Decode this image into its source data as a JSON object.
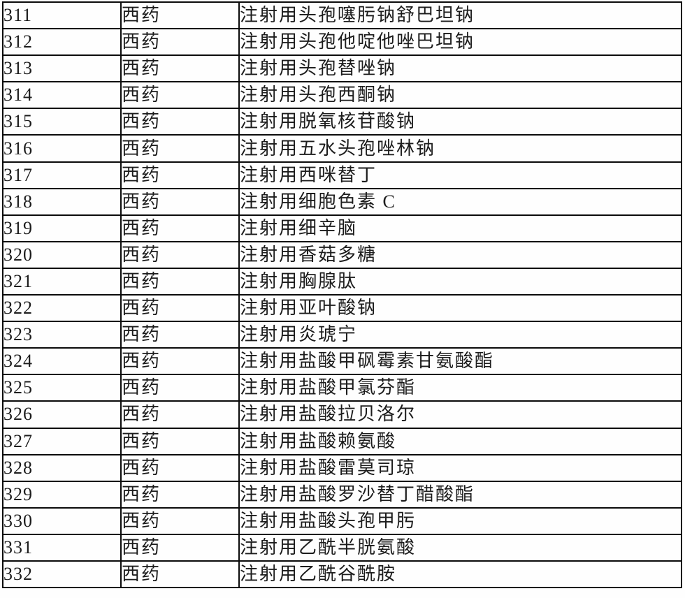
{
  "document": {
    "type": "drug-list-table",
    "category_label": "西药",
    "colors": {
      "border": "#0b0b0b",
      "text": "#1c1c1c",
      "background": "#fefefe"
    }
  },
  "table": {
    "rows": [
      {
        "no": "311",
        "category": "西药",
        "name": "注射用头孢噻肟钠舒巴坦钠"
      },
      {
        "no": "312",
        "category": "西药",
        "name": "注射用头孢他啶他唑巴坦钠"
      },
      {
        "no": "313",
        "category": "西药",
        "name": "注射用头孢替唑钠"
      },
      {
        "no": "314",
        "category": "西药",
        "name": "注射用头孢西酮钠"
      },
      {
        "no": "315",
        "category": "西药",
        "name": "注射用脱氧核苷酸钠"
      },
      {
        "no": "316",
        "category": "西药",
        "name": "注射用五水头孢唑林钠"
      },
      {
        "no": "317",
        "category": "西药",
        "name": "注射用西咪替丁"
      },
      {
        "no": "318",
        "category": "西药",
        "name": "注射用细胞色素 C"
      },
      {
        "no": "319",
        "category": "西药",
        "name": "注射用细辛脑"
      },
      {
        "no": "320",
        "category": "西药",
        "name": "注射用香菇多糖"
      },
      {
        "no": "321",
        "category": "西药",
        "name": "注射用胸腺肽"
      },
      {
        "no": "322",
        "category": "西药",
        "name": "注射用亚叶酸钠"
      },
      {
        "no": "323",
        "category": "西药",
        "name": "注射用炎琥宁"
      },
      {
        "no": "324",
        "category": "西药",
        "name": "注射用盐酸甲砜霉素甘氨酸酯"
      },
      {
        "no": "325",
        "category": "西药",
        "name": "注射用盐酸甲氯芬酯"
      },
      {
        "no": "326",
        "category": "西药",
        "name": "注射用盐酸拉贝洛尔"
      },
      {
        "no": "327",
        "category": "西药",
        "name": "注射用盐酸赖氨酸"
      },
      {
        "no": "328",
        "category": "西药",
        "name": "注射用盐酸雷莫司琼"
      },
      {
        "no": "329",
        "category": "西药",
        "name": "注射用盐酸罗沙替丁醋酸酯"
      },
      {
        "no": "330",
        "category": "西药",
        "name": "注射用盐酸头孢甲肟"
      },
      {
        "no": "331",
        "category": "西药",
        "name": "注射用乙酰半胱氨酸"
      },
      {
        "no": "332",
        "category": "西药",
        "name": "注射用乙酰谷酰胺"
      }
    ]
  }
}
